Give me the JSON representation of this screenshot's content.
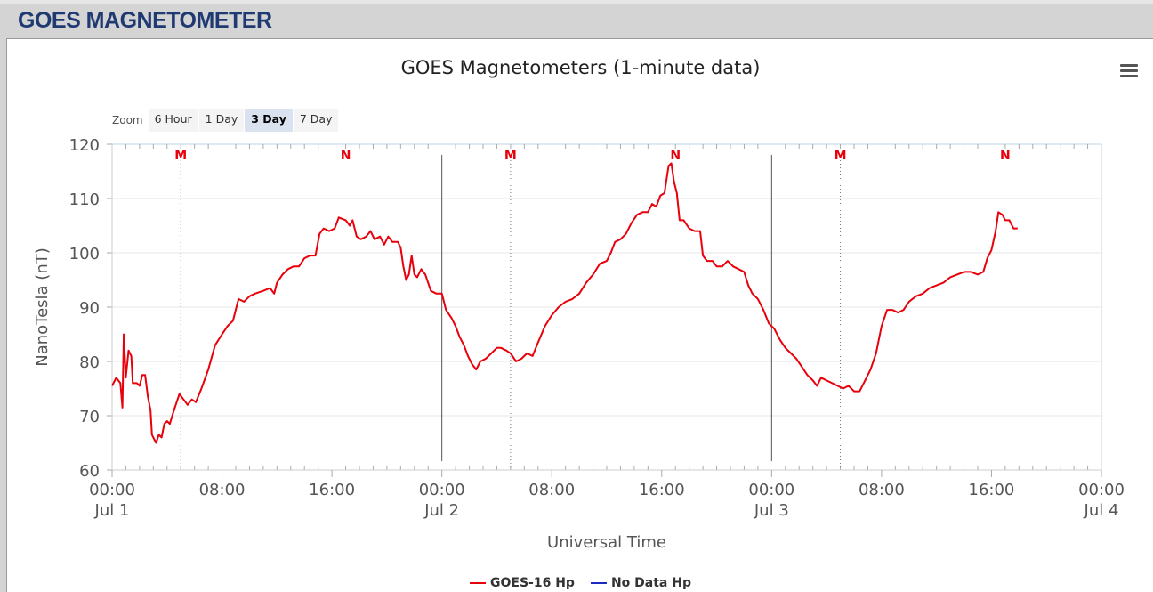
{
  "header": {
    "title": "GOES MAGNETOMETER"
  },
  "zoom": {
    "label": "Zoom",
    "buttons": [
      "6 Hour",
      "1 Day",
      "3 Day",
      "7 Day"
    ],
    "active_index": 2
  },
  "menu_icon": "hamburger-menu-icon",
  "chart_data": {
    "type": "line",
    "title": "GOES Magnetometers (1-minute data)",
    "xlabel": "Universal Time",
    "ylabel": "NanoTesla (nT)",
    "xlim": [
      "2000-07-01 00:00",
      "2000-07-04 00:00"
    ],
    "ylim": [
      60,
      120
    ],
    "yticks": [
      60,
      70,
      80,
      90,
      100,
      110,
      120
    ],
    "xticks": [
      {
        "hour": 0,
        "label": "00:00",
        "sub": "Jul 1"
      },
      {
        "hour": 8,
        "label": "08:00",
        "sub": ""
      },
      {
        "hour": 16,
        "label": "16:00",
        "sub": ""
      },
      {
        "hour": 24,
        "label": "00:00",
        "sub": "Jul 2"
      },
      {
        "hour": 32,
        "label": "08:00",
        "sub": ""
      },
      {
        "hour": 40,
        "label": "16:00",
        "sub": ""
      },
      {
        "hour": 48,
        "label": "00:00",
        "sub": "Jul 3"
      },
      {
        "hour": 56,
        "label": "08:00",
        "sub": ""
      },
      {
        "hour": 64,
        "label": "16:00",
        "sub": ""
      },
      {
        "hour": 72,
        "label": "00:00",
        "sub": "Jul 4"
      }
    ],
    "day_boundaries_hours": [
      24,
      48
    ],
    "markers": [
      {
        "hour": 5,
        "label": "M",
        "dotted": true
      },
      {
        "hour": 17,
        "label": "N",
        "dotted": false
      },
      {
        "hour": 29,
        "label": "M",
        "dotted": true
      },
      {
        "hour": 41,
        "label": "N",
        "dotted": false
      },
      {
        "hour": 53,
        "label": "M",
        "dotted": true
      },
      {
        "hour": 65,
        "label": "N",
        "dotted": false
      }
    ],
    "series": [
      {
        "name": "GOES-16 Hp",
        "color": "#e8000b",
        "points": [
          [
            0,
            75.5
          ],
          [
            0.3,
            77
          ],
          [
            0.6,
            76
          ],
          [
            0.75,
            71.5
          ],
          [
            0.85,
            85
          ],
          [
            1.0,
            77
          ],
          [
            1.2,
            82
          ],
          [
            1.4,
            81
          ],
          [
            1.5,
            76
          ],
          [
            1.8,
            76
          ],
          [
            2.0,
            75.5
          ],
          [
            2.2,
            77.5
          ],
          [
            2.4,
            77.5
          ],
          [
            2.6,
            73.5
          ],
          [
            2.8,
            71
          ],
          [
            2.9,
            66.5
          ],
          [
            3.2,
            65
          ],
          [
            3.4,
            66.5
          ],
          [
            3.6,
            66
          ],
          [
            3.8,
            68.5
          ],
          [
            4.0,
            69
          ],
          [
            4.2,
            68.5
          ],
          [
            4.5,
            71
          ],
          [
            4.9,
            74
          ],
          [
            5.2,
            73
          ],
          [
            5.5,
            72
          ],
          [
            5.8,
            73
          ],
          [
            6.1,
            72.5
          ],
          [
            6.5,
            75
          ],
          [
            7.0,
            78.5
          ],
          [
            7.5,
            83
          ],
          [
            8.0,
            85
          ],
          [
            8.4,
            86.5
          ],
          [
            8.8,
            87.5
          ],
          [
            9.2,
            91.5
          ],
          [
            9.6,
            91
          ],
          [
            10.0,
            92
          ],
          [
            10.4,
            92.5
          ],
          [
            11.0,
            93
          ],
          [
            11.5,
            93.5
          ],
          [
            11.8,
            92.5
          ],
          [
            12.0,
            94.5
          ],
          [
            12.4,
            96
          ],
          [
            12.8,
            97
          ],
          [
            13.2,
            97.5
          ],
          [
            13.6,
            97.5
          ],
          [
            14.0,
            99
          ],
          [
            14.4,
            99.5
          ],
          [
            14.8,
            99.5
          ],
          [
            15.1,
            103.5
          ],
          [
            15.4,
            104.5
          ],
          [
            15.8,
            104
          ],
          [
            16.2,
            104.5
          ],
          [
            16.5,
            106.5
          ],
          [
            17.0,
            106
          ],
          [
            17.3,
            105
          ],
          [
            17.5,
            106
          ],
          [
            17.8,
            103
          ],
          [
            18.1,
            102.5
          ],
          [
            18.5,
            103
          ],
          [
            18.8,
            104
          ],
          [
            19.1,
            102.5
          ],
          [
            19.5,
            103
          ],
          [
            19.8,
            101.5
          ],
          [
            20.1,
            103
          ],
          [
            20.4,
            102
          ],
          [
            20.8,
            102
          ],
          [
            21.0,
            101
          ],
          [
            21.2,
            97.5
          ],
          [
            21.4,
            95
          ],
          [
            21.6,
            96
          ],
          [
            21.8,
            99.5
          ],
          [
            22.0,
            96
          ],
          [
            22.2,
            95.5
          ],
          [
            22.5,
            97
          ],
          [
            22.8,
            96
          ],
          [
            23.0,
            94.5
          ],
          [
            23.2,
            93
          ],
          [
            23.6,
            92.5
          ],
          [
            24.0,
            92.5
          ],
          [
            24.3,
            89.5
          ],
          [
            24.7,
            88
          ],
          [
            25.0,
            86.5
          ],
          [
            25.3,
            84.5
          ],
          [
            25.6,
            83
          ],
          [
            25.9,
            81
          ],
          [
            26.2,
            79.5
          ],
          [
            26.5,
            78.5
          ],
          [
            26.8,
            80
          ],
          [
            27.2,
            80.5
          ],
          [
            27.6,
            81.5
          ],
          [
            28.0,
            82.5
          ],
          [
            28.3,
            82.5
          ],
          [
            28.7,
            82
          ],
          [
            29.0,
            81.5
          ],
          [
            29.4,
            80
          ],
          [
            29.8,
            80.5
          ],
          [
            30.2,
            81.5
          ],
          [
            30.6,
            81
          ],
          [
            31.0,
            83.5
          ],
          [
            31.5,
            86.5
          ],
          [
            32.0,
            88.5
          ],
          [
            32.5,
            90
          ],
          [
            33.0,
            91
          ],
          [
            33.5,
            91.5
          ],
          [
            34.0,
            92.5
          ],
          [
            34.5,
            94.5
          ],
          [
            35.0,
            96
          ],
          [
            35.5,
            98
          ],
          [
            36.0,
            98.5
          ],
          [
            36.3,
            100
          ],
          [
            36.6,
            102
          ],
          [
            37.0,
            102.5
          ],
          [
            37.4,
            103.5
          ],
          [
            37.8,
            105.5
          ],
          [
            38.2,
            107
          ],
          [
            38.6,
            107.5
          ],
          [
            39.0,
            107.5
          ],
          [
            39.3,
            109
          ],
          [
            39.6,
            108.5
          ],
          [
            39.9,
            110.5
          ],
          [
            40.2,
            111
          ],
          [
            40.5,
            116
          ],
          [
            40.7,
            116.5
          ],
          [
            40.9,
            113
          ],
          [
            41.1,
            111
          ],
          [
            41.3,
            106
          ],
          [
            41.6,
            106
          ],
          [
            42.0,
            104.5
          ],
          [
            42.4,
            104
          ],
          [
            42.8,
            104
          ],
          [
            43.0,
            99.5
          ],
          [
            43.3,
            98.5
          ],
          [
            43.7,
            98.5
          ],
          [
            44.0,
            97.5
          ],
          [
            44.4,
            97.5
          ],
          [
            44.8,
            98.5
          ],
          [
            45.2,
            97.5
          ],
          [
            45.6,
            97
          ],
          [
            46.0,
            96.5
          ],
          [
            46.3,
            94
          ],
          [
            46.6,
            92.5
          ],
          [
            47.0,
            91.5
          ],
          [
            47.4,
            89.5
          ],
          [
            47.8,
            87
          ],
          [
            48.2,
            86
          ],
          [
            48.6,
            84
          ],
          [
            49.0,
            82.5
          ],
          [
            49.4,
            81.5
          ],
          [
            49.8,
            80.5
          ],
          [
            50.2,
            79
          ],
          [
            50.6,
            77.5
          ],
          [
            51.0,
            76.5
          ],
          [
            51.3,
            75.5
          ],
          [
            51.6,
            77
          ],
          [
            52.0,
            76.5
          ],
          [
            52.4,
            76
          ],
          [
            52.8,
            75.5
          ],
          [
            53.2,
            75
          ],
          [
            53.6,
            75.5
          ],
          [
            54.0,
            74.5
          ],
          [
            54.4,
            74.5
          ],
          [
            54.8,
            76.5
          ],
          [
            55.2,
            78.5
          ],
          [
            55.6,
            81.5
          ],
          [
            56.0,
            86.5
          ],
          [
            56.4,
            89.5
          ],
          [
            56.8,
            89.5
          ],
          [
            57.2,
            89
          ],
          [
            57.6,
            89.5
          ],
          [
            58.0,
            91
          ],
          [
            58.5,
            92
          ],
          [
            59.0,
            92.5
          ],
          [
            59.5,
            93.5
          ],
          [
            60.0,
            94
          ],
          [
            60.5,
            94.5
          ],
          [
            61.0,
            95.5
          ],
          [
            61.5,
            96
          ],
          [
            62.0,
            96.5
          ],
          [
            62.5,
            96.5
          ],
          [
            63.0,
            96
          ],
          [
            63.4,
            96.5
          ],
          [
            63.7,
            99
          ],
          [
            64.0,
            100.5
          ],
          [
            64.3,
            104
          ],
          [
            64.5,
            107.5
          ],
          [
            64.8,
            107
          ],
          [
            65.0,
            106
          ],
          [
            65.3,
            106
          ],
          [
            65.6,
            104.5
          ],
          [
            65.9,
            104.5
          ]
        ]
      },
      {
        "name": "No Data Hp",
        "color": "#1c2cc2",
        "points": []
      }
    ]
  }
}
